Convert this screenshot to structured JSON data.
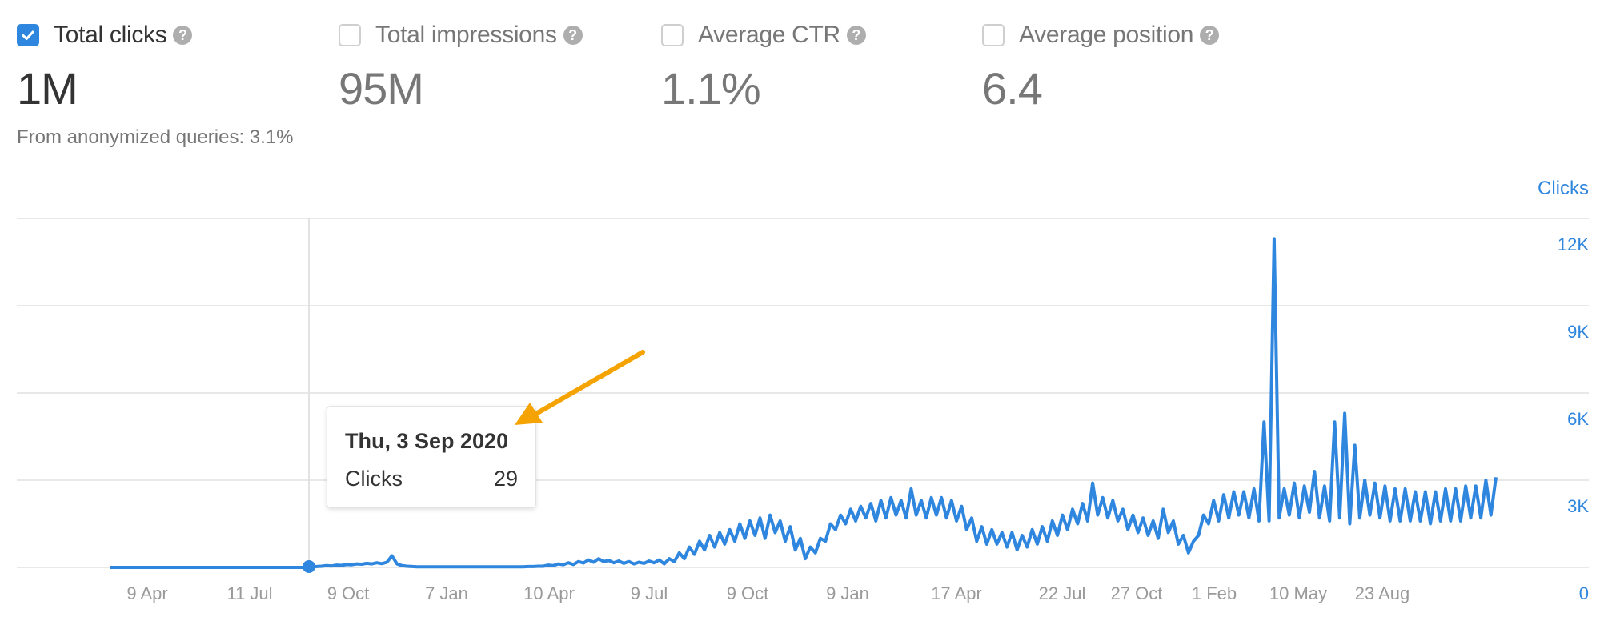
{
  "metrics": [
    {
      "label": "Total clicks",
      "value": "1M",
      "checked": true,
      "help_icon": "question-circle-icon"
    },
    {
      "label": "Total impressions",
      "value": "95M",
      "checked": false,
      "help_icon": "question-circle-icon"
    },
    {
      "label": "Average CTR",
      "value": "1.1%",
      "checked": false,
      "help_icon": "question-circle-icon"
    },
    {
      "label": "Average position",
      "value": "6.4",
      "checked": false,
      "help_icon": "question-circle-icon"
    }
  ],
  "anonymized_note": "From anonymized queries: 3.1%",
  "colors": {
    "accent": "#2f86de",
    "line": "#2f86de",
    "annotation_arrow": "#f5a300",
    "grid": "#e8e8e8",
    "axis_text": "#9a9a9a"
  },
  "tooltip": {
    "date": "Thu, 3 Sep 2020",
    "metric_label": "Clicks",
    "metric_value": "29"
  },
  "chart_data": {
    "type": "line",
    "title": "",
    "xlabel": "",
    "ylabel": "Clicks",
    "y_axis_position": "right",
    "ylim": [
      0,
      12000
    ],
    "y_ticks": [
      {
        "label": "12K",
        "value": 12000
      },
      {
        "label": "9K",
        "value": 9000
      },
      {
        "label": "6K",
        "value": 6000
      },
      {
        "label": "3K",
        "value": 3000
      },
      {
        "label": "0",
        "value": 0
      }
    ],
    "x_ticks": [
      "9 Apr",
      "11 Jul",
      "9 Oct",
      "7 Jan",
      "10 Apr",
      "9 Jul",
      "9 Oct",
      "9 Jan",
      "17 Apr",
      "22 Jul",
      "27 Oct",
      "1 Feb",
      "10 May",
      "23 Aug"
    ],
    "grid": true,
    "legend": "none",
    "series": [
      {
        "name": "Clicks",
        "note": "approximate values sampled at regular intervals across the timeline",
        "values": [
          0,
          0,
          0,
          0,
          0,
          0,
          0,
          0,
          0,
          0,
          0,
          0,
          0,
          0,
          0,
          0,
          0,
          0,
          0,
          0,
          0,
          0,
          0,
          0,
          0,
          0,
          0,
          0,
          0,
          0,
          0,
          0,
          0,
          0,
          0,
          0,
          0,
          0,
          0,
          0,
          0,
          29,
          40,
          60,
          50,
          80,
          70,
          100,
          90,
          120,
          110,
          140,
          120,
          160,
          130,
          180,
          400,
          120,
          60,
          40,
          30,
          20,
          20,
          20,
          20,
          20,
          20,
          20,
          20,
          20,
          20,
          20,
          20,
          20,
          20,
          20,
          20,
          20,
          20,
          20,
          20,
          20,
          20,
          30,
          30,
          40,
          40,
          80,
          60,
          120,
          90,
          160,
          100,
          200,
          150,
          260,
          180,
          300,
          200,
          240,
          160,
          220,
          140,
          200,
          120,
          180,
          140,
          220,
          160,
          260,
          120,
          300,
          200,
          500,
          300,
          700,
          450,
          900,
          600,
          1100,
          700,
          1200,
          800,
          1300,
          900,
          1500,
          1000,
          1600,
          1100,
          1700,
          1000,
          1800,
          1200,
          1600,
          900,
          1400,
          600,
          1000,
          300,
          700,
          500,
          1000,
          900,
          1500,
          1300,
          1800,
          1500,
          2000,
          1600,
          2100,
          1700,
          2200,
          1600,
          2300,
          1700,
          2400,
          1800,
          2300,
          1700,
          2700,
          1800,
          2300,
          1700,
          2400,
          1800,
          2400,
          1700,
          2300,
          1600,
          2100,
          1300,
          1700,
          900,
          1400,
          800,
          1300,
          800,
          1200,
          700,
          1200,
          600,
          1100,
          700,
          1300,
          800,
          1400,
          900,
          1600,
          1100,
          1800,
          1300,
          2000,
          1500,
          2200,
          1600,
          2900,
          1800,
          2400,
          1700,
          2300,
          1600,
          2000,
          1300,
          1800,
          1200,
          1700,
          1100,
          1600,
          1000,
          2000,
          1200,
          1600,
          800,
          1100,
          500,
          900,
          1100,
          1800,
          1500,
          2300,
          1600,
          2500,
          1700,
          2600,
          1800,
          2600,
          1700,
          2700,
          1600,
          5000,
          1600,
          11300,
          1700,
          2700,
          1800,
          2900,
          1700,
          2800,
          1900,
          3300,
          1700,
          2800,
          1600,
          5000,
          1700,
          5300,
          1500,
          4200,
          1700,
          3000,
          1800,
          2900,
          1700,
          2800,
          1600,
          2700,
          1600,
          2700,
          1600,
          2600,
          1600,
          2600,
          1500,
          2600,
          1600,
          2700,
          1600,
          2700,
          1600,
          2800,
          1700,
          2800,
          1700,
          3000,
          1800,
          3100
        ]
      }
    ],
    "highlight": {
      "date": "Thu, 3 Sep 2020",
      "value": 29
    }
  }
}
